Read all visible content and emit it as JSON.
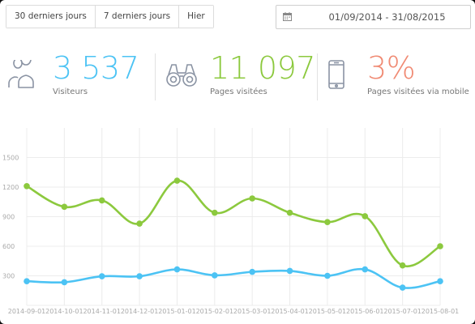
{
  "toolbar": {
    "ranges": [
      "30 derniers jours",
      "7 derniers jours",
      "Hier"
    ],
    "date_range": "01/09/2014 - 31/08/2015"
  },
  "stats": [
    {
      "value": "3 537",
      "label": "Visiteurs",
      "color": "#4cc3f4",
      "icon": "users-icon"
    },
    {
      "value": "11 097",
      "label": "Pages visitées",
      "color": "#8cc93e",
      "icon": "binoculars-icon"
    },
    {
      "value": "3%",
      "label": "Pages visitées via mobile",
      "color": "#f08a73",
      "icon": "mobile-phone-icon"
    }
  ],
  "chart_data": {
    "type": "line",
    "categories": [
      "2014-09-01",
      "2014-10-01",
      "2014-11-01",
      "2014-12-01",
      "2015-01-01",
      "2015-02-01",
      "2015-03-01",
      "2015-04-01",
      "2015-05-01",
      "2015-06-01",
      "2015-07-01",
      "2015-08-01"
    ],
    "yticks": [
      300,
      600,
      900,
      1200,
      1500
    ],
    "ylim": [
      0,
      1800
    ],
    "grid": true,
    "series": [
      {
        "color": "#8cc93e",
        "values": [
          1210,
          1000,
          1065,
          830,
          1265,
          940,
          1085,
          940,
          845,
          905,
          405,
          600
        ]
      },
      {
        "color": "#4cc3f4",
        "values": [
          245,
          235,
          295,
          295,
          365,
          305,
          340,
          350,
          300,
          365,
          180,
          245
        ]
      }
    ]
  }
}
